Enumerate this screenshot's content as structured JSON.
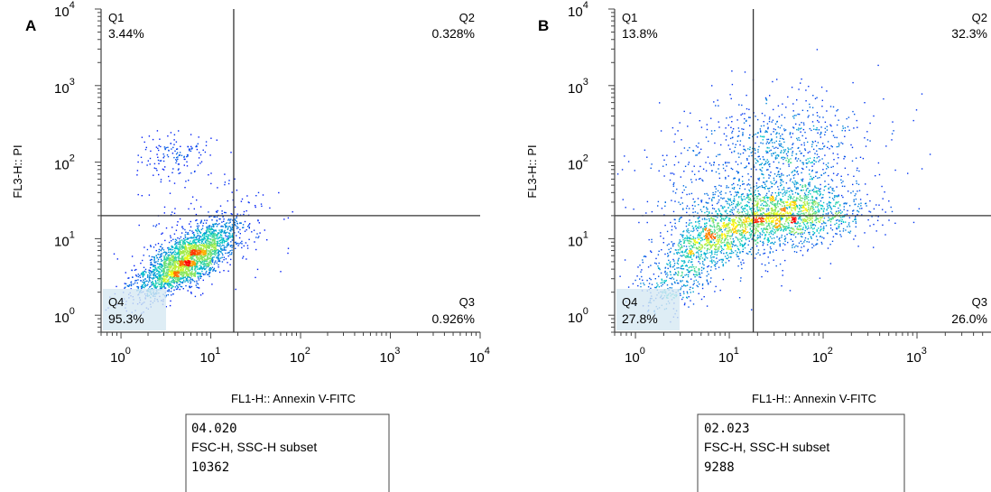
{
  "chart_data": [
    {
      "type": "scatter",
      "panel_label": "A",
      "xlabel": "FL1-H:: Annexin V-FITC",
      "ylabel": "FL3-H:: PI",
      "x_scale": "log",
      "y_scale": "log",
      "xlim": [
        0.6,
        10000
      ],
      "ylim": [
        0.6,
        10000
      ],
      "x_ticks": [
        1,
        10,
        100,
        1000,
        10000
      ],
      "y_ticks": [
        1,
        10,
        100,
        1000,
        10000
      ],
      "x_tick_labels": [
        {
          "base": "10",
          "exp": "0"
        },
        {
          "base": "10",
          "exp": "1"
        },
        {
          "base": "10",
          "exp": "2"
        },
        {
          "base": "10",
          "exp": "3"
        },
        {
          "base": "10",
          "exp": "4"
        }
      ],
      "y_tick_labels": [
        {
          "base": "10",
          "exp": "0"
        },
        {
          "base": "10",
          "exp": "1"
        },
        {
          "base": "10",
          "exp": "2"
        },
        {
          "base": "10",
          "exp": "3"
        },
        {
          "base": "10",
          "exp": "4"
        }
      ],
      "quadrant_gate": {
        "x": 18,
        "y": 20
      },
      "quadrants": [
        {
          "id": "Q1",
          "label": "Q1",
          "value": "3.44%"
        },
        {
          "id": "Q2",
          "label": "Q2",
          "value": "0.328%"
        },
        {
          "id": "Q3",
          "label": "Q3",
          "value": "0.926%"
        },
        {
          "id": "Q4",
          "label": "Q4",
          "value": "95.3%"
        }
      ],
      "clusters": [
        {
          "cx": 5.5,
          "cy": 5.5,
          "sx": 0.28,
          "sy": 0.24,
          "rho": 0.72,
          "n": 2600
        },
        {
          "cx": 4.0,
          "cy": 130,
          "sx": 0.2,
          "sy": 0.16,
          "rho": 0.0,
          "n": 140
        },
        {
          "cx": 10,
          "cy": 14,
          "sx": 0.45,
          "sy": 0.4,
          "rho": 0.2,
          "n": 140
        }
      ],
      "info_box": {
        "sample": "04.020",
        "gate": "FSC-H, SSC-H subset",
        "count": "10362"
      }
    },
    {
      "type": "scatter",
      "panel_label": "B",
      "xlabel": "FL1-H:: Annexin V-FITC",
      "ylabel": "FL3-H:: PI",
      "x_scale": "log",
      "y_scale": "log",
      "xlim": [
        0.6,
        10000
      ],
      "ylim": [
        0.6,
        10000
      ],
      "x_ticks": [
        1,
        10,
        100,
        1000,
        10000
      ],
      "y_ticks": [
        1,
        10,
        100,
        1000,
        10000
      ],
      "x_tick_labels": [
        {
          "base": "10",
          "exp": "0"
        },
        {
          "base": "10",
          "exp": "1"
        },
        {
          "base": "10",
          "exp": "2"
        },
        {
          "base": "10",
          "exp": "3"
        },
        {
          "base": "10",
          "exp": ""
        }
      ],
      "y_tick_labels": [
        {
          "base": "10",
          "exp": "0"
        },
        {
          "base": "10",
          "exp": "1"
        },
        {
          "base": "10",
          "exp": "2"
        },
        {
          "base": "10",
          "exp": "3"
        },
        {
          "base": "10",
          "exp": "4"
        }
      ],
      "quadrant_gate": {
        "x": 18,
        "y": 20
      },
      "quadrants": [
        {
          "id": "Q1",
          "label": "Q1",
          "value": "13.8%"
        },
        {
          "id": "Q2",
          "label": "Q2",
          "value": "32.3%"
        },
        {
          "id": "Q3",
          "label": "Q3",
          "value": "26.0%"
        },
        {
          "id": "Q4",
          "label": "Q4",
          "value": "27.8%"
        }
      ],
      "clusters": [
        {
          "cx": 35,
          "cy": 20,
          "sx": 0.42,
          "sy": 0.2,
          "rho": 0.15,
          "n": 1700
        },
        {
          "cx": 6,
          "cy": 9,
          "sx": 0.25,
          "sy": 0.22,
          "rho": 0.55,
          "n": 700
        },
        {
          "cx": 40,
          "cy": 150,
          "sx": 0.45,
          "sy": 0.38,
          "rho": 0.1,
          "n": 700
        },
        {
          "cx": 2.5,
          "cy": 2.5,
          "sx": 0.2,
          "sy": 0.2,
          "rho": 0.3,
          "n": 260
        },
        {
          "cx": 8,
          "cy": 35,
          "sx": 0.5,
          "sy": 0.6,
          "rho": 0.0,
          "n": 400
        }
      ],
      "info_box": {
        "sample": "02.023",
        "gate": "FSC-H, SSC-H subset",
        "count": "9288"
      }
    }
  ],
  "colors": {
    "axis": "#444444",
    "gate_line": "#333333",
    "density_low": "#0000ff",
    "density_mid": "#00c8c8",
    "density_high": "#ffff00",
    "density_peak": "#ff0000",
    "q4_box": "#d6e8f2"
  }
}
